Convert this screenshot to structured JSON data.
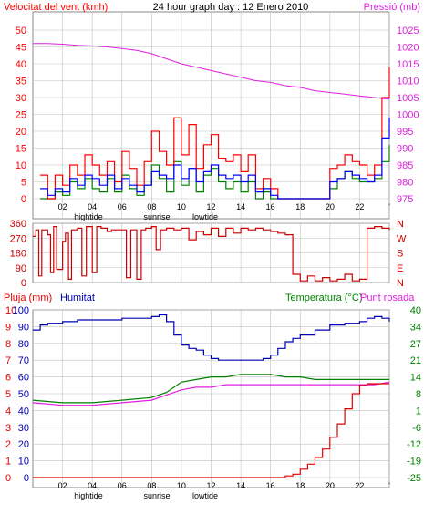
{
  "header": {
    "title": "24 hour graph day : 12 Enero 2010",
    "left_label": "Velocitat del vent (kmh)",
    "right_label": "Pressió (mb)"
  },
  "bottom_headers": {
    "rain": "Pluja (mm)",
    "humidity": "Humitat",
    "temperature": "Temperatura (°C)",
    "dewpoint": "Punt rosada"
  },
  "colors": {
    "wind": "#ff0000",
    "wind_avg": "#0000ff",
    "wind_green": "#008000",
    "pressure": "#e020e0",
    "direction": "#cc0000",
    "humidity": "#0000b0",
    "temperature": "#008000",
    "dewpoint": "#e020e0",
    "rain": "#e00000",
    "frame": "#888888",
    "grid": "#c0c0c0",
    "black": "#000000"
  },
  "events": {
    "top": {
      "hightide": "hightide",
      "sunrise": "sunrise",
      "lowtide": "lowtide"
    },
    "bottom": {
      "hightide": "hightide",
      "sunrise": "sunrise",
      "lowtide": "lowtide"
    }
  },
  "chart_data": [
    {
      "type": "line",
      "name": "wind_pressure",
      "x_ticks": [
        "02",
        "04",
        "06",
        "08",
        "10",
        "12",
        "14",
        "16",
        "18",
        "20",
        "22",
        "'"
      ],
      "x_range": [
        0,
        24
      ],
      "ylim_left": [
        0,
        50
      ],
      "ylim_right": [
        975,
        1025
      ],
      "yticks_left": [
        0,
        5,
        10,
        15,
        20,
        25,
        30,
        35,
        40,
        45,
        50
      ],
      "yticks_right": [
        975,
        980,
        985,
        990,
        995,
        1000,
        1005,
        1010,
        1015,
        1020,
        1025
      ],
      "pressure": {
        "x": [
          0,
          1,
          2,
          3,
          4,
          5,
          6,
          7,
          8,
          9,
          10,
          11,
          12,
          13,
          14,
          15,
          16,
          17,
          18,
          19,
          20,
          21,
          22,
          23,
          24
        ],
        "y": [
          1021,
          1021,
          1020.8,
          1020.5,
          1020.3,
          1020,
          1019.5,
          1019,
          1018,
          1016.5,
          1015,
          1014,
          1013,
          1012,
          1011,
          1010,
          1009.5,
          1008.5,
          1008,
          1007,
          1006.5,
          1006,
          1005.5,
          1005,
          1004.5
        ]
      },
      "wind_gust": {
        "x": [
          0.5,
          1,
          1.5,
          2,
          2.5,
          3,
          3.5,
          4,
          4.5,
          5,
          5.5,
          6,
          6.5,
          7,
          7.5,
          8,
          8.5,
          9,
          9.5,
          10,
          10.5,
          11,
          11.5,
          12,
          12.5,
          13,
          13.5,
          14,
          14.5,
          15,
          15.5,
          16,
          16.5,
          17,
          17.5,
          18,
          18.5,
          19,
          19.5,
          20,
          20.5,
          21,
          21.5,
          22,
          22.5,
          23,
          23.5,
          24
        ],
        "y": [
          7,
          0,
          7,
          4,
          10,
          7,
          13,
          10,
          7,
          11,
          5,
          14,
          9,
          4,
          11,
          20,
          14,
          10,
          24,
          13,
          22,
          9,
          16,
          19,
          12,
          11,
          13,
          8,
          13,
          3,
          6,
          3,
          0,
          0,
          0,
          0,
          0,
          0,
          0,
          9,
          10,
          13,
          11,
          10,
          7,
          10,
          30,
          39
        ]
      },
      "wind_avg": {
        "x": [
          0.5,
          1,
          1.5,
          2,
          2.5,
          3,
          3.5,
          4,
          4.5,
          5,
          5.5,
          6,
          6.5,
          7,
          7.5,
          8,
          8.5,
          9,
          9.5,
          10,
          10.5,
          11,
          11.5,
          12,
          12.5,
          13,
          13.5,
          14,
          14.5,
          15,
          15.5,
          16,
          16.5,
          17,
          17.5,
          18,
          18.5,
          19,
          19.5,
          20,
          20.5,
          21,
          21.5,
          22,
          22.5,
          23,
          23.5,
          24
        ],
        "y": [
          3,
          1,
          3,
          2,
          6,
          4,
          7,
          6,
          4,
          7,
          3,
          6,
          4,
          2,
          4,
          8,
          7,
          6,
          10,
          6,
          9,
          5,
          8,
          10,
          7,
          6,
          7,
          5,
          7,
          2,
          3,
          1,
          0,
          0,
          0,
          0,
          0,
          0,
          0,
          5,
          6,
          8,
          7,
          6,
          5,
          7,
          18,
          24
        ]
      },
      "wind_min": {
        "x": [
          0.5,
          1,
          1.5,
          2,
          2.5,
          3,
          3.5,
          4,
          4.5,
          5,
          5.5,
          6,
          6.5,
          7,
          7.5,
          8,
          8.5,
          9,
          9.5,
          10,
          10.5,
          11,
          11.5,
          12,
          12.5,
          13,
          13.5,
          14,
          14.5,
          15,
          15.5,
          16,
          16.5,
          17,
          17.5,
          18,
          18.5,
          19,
          19.5,
          20,
          20.5,
          21,
          21.5,
          22,
          22.5,
          23,
          23.5,
          24
        ],
        "y": [
          0,
          0,
          2,
          1,
          5,
          3,
          6,
          3,
          2,
          6,
          2,
          7,
          3,
          1,
          4,
          10,
          6,
          2,
          11,
          4,
          9,
          2,
          7,
          9,
          5,
          3,
          5,
          2,
          5,
          0,
          2,
          0,
          0,
          0,
          0,
          0,
          0,
          0,
          0,
          3,
          6,
          8,
          6,
          5,
          5,
          6,
          11,
          16
        ]
      }
    },
    {
      "type": "line",
      "name": "wind_direction",
      "x_range": [
        0,
        24
      ],
      "ylim_left": [
        0,
        360
      ],
      "yticks_left": [
        0,
        90,
        180,
        270,
        360
      ],
      "yticks_right": [
        "N",
        "E",
        "S",
        "W",
        "N"
      ],
      "x": [
        0,
        0.2,
        0.4,
        0.6,
        1,
        1.2,
        1.4,
        1.6,
        2,
        2.2,
        2.4,
        2.6,
        3,
        3.3,
        3.6,
        4,
        4.3,
        4.6,
        5,
        5.3,
        5.6,
        6,
        6.3,
        6.6,
        7,
        7.3,
        7.6,
        8,
        8.3,
        8.6,
        9,
        9.5,
        10,
        10.5,
        11,
        11.5,
        12,
        12.5,
        13,
        13.5,
        14,
        14.5,
        15,
        15.5,
        16,
        16.5,
        17,
        17.5,
        18,
        18.5,
        19,
        19.5,
        20,
        20.5,
        21,
        21.5,
        22,
        22.5,
        23,
        23.5,
        24
      ],
      "y": [
        280,
        320,
        40,
        320,
        290,
        60,
        340,
        80,
        250,
        300,
        20,
        320,
        330,
        40,
        340,
        60,
        340,
        330,
        310,
        320,
        320,
        320,
        30,
        320,
        20,
        320,
        330,
        340,
        200,
        320,
        330,
        320,
        330,
        260,
        310,
        290,
        330,
        280,
        330,
        300,
        330,
        320,
        330,
        320,
        310,
        300,
        290,
        50,
        10,
        40,
        10,
        30,
        10,
        20,
        50,
        10,
        20,
        330,
        340,
        330,
        320
      ]
    },
    {
      "type": "line",
      "name": "climate",
      "x_range": [
        0,
        24
      ],
      "ylim_rain": [
        0,
        10
      ],
      "yticks_rain": [
        0,
        1,
        2,
        3,
        4,
        5,
        6,
        7,
        8,
        9,
        10
      ],
      "ylim_humidity": [
        0,
        100
      ],
      "yticks_humidity": [
        0,
        10,
        20,
        30,
        40,
        50,
        60,
        70,
        80,
        90,
        100
      ],
      "ylim_temp": [
        -25,
        40
      ],
      "yticks_temp": [
        -25,
        -19,
        -12,
        -6,
        1,
        8,
        14,
        21,
        27,
        34,
        40
      ],
      "humidity": {
        "x": [
          0,
          0.5,
          1,
          2,
          3,
          4,
          5,
          6,
          7,
          8,
          8.5,
          9,
          9.5,
          10,
          10.5,
          11,
          11.5,
          12,
          12.5,
          13,
          13.5,
          14,
          14.5,
          15,
          15.5,
          16,
          16.5,
          17,
          17.5,
          18,
          19,
          20,
          21,
          22,
          22.5,
          23,
          23.5,
          24
        ],
        "y": [
          88,
          91,
          92,
          93,
          94,
          94,
          94,
          95,
          95,
          96,
          97,
          93,
          85,
          79,
          77,
          76,
          73,
          71,
          70,
          70,
          70,
          70,
          70,
          70,
          71,
          73,
          77,
          81,
          83,
          85,
          88,
          91,
          92,
          93,
          95,
          96,
          95,
          93
        ]
      },
      "temperature": {
        "x": [
          0,
          2,
          4,
          6,
          8,
          9,
          10,
          11,
          12,
          13,
          14,
          15,
          16,
          17,
          18,
          19,
          20,
          21,
          22,
          23,
          24
        ],
        "y": [
          5,
          4,
          4,
          5,
          6,
          8,
          12,
          13,
          14,
          14,
          15,
          15,
          15,
          14,
          14,
          13,
          13,
          13,
          13,
          13,
          13
        ]
      },
      "dewpoint": {
        "x": [
          0,
          2,
          4,
          6,
          8,
          9,
          10,
          11,
          12,
          13,
          14,
          15,
          16,
          17,
          18,
          19,
          20,
          21,
          22,
          23,
          24
        ],
        "y": [
          4,
          3,
          3,
          4,
          5,
          7,
          9,
          10,
          10,
          11,
          11,
          11,
          11,
          11,
          11,
          11,
          11,
          11,
          11,
          11,
          12
        ]
      },
      "rain": {
        "x": [
          0,
          16,
          17,
          17.5,
          18,
          18.5,
          19,
          19.5,
          20,
          20.5,
          21,
          21.5,
          22,
          22.5,
          23,
          24
        ],
        "y": [
          0,
          0,
          0.1,
          0.2,
          0.5,
          0.8,
          1.2,
          1.7,
          2.4,
          3.2,
          4.1,
          5,
          5.5,
          5.6,
          5.6,
          5.6
        ]
      }
    }
  ]
}
